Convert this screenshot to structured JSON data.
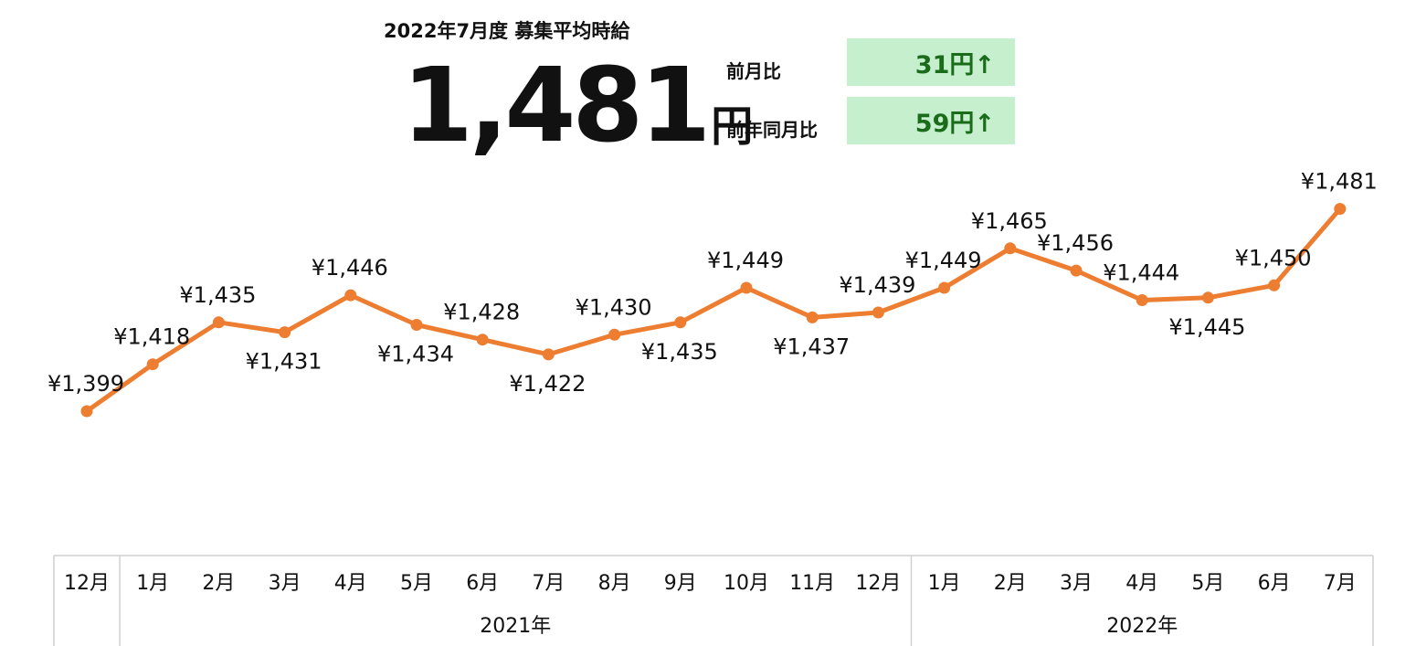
{
  "header": {
    "title": "2022年7月度 募集平均時給",
    "value": "1,481",
    "unit": "円",
    "mom_label": "前月比",
    "mom_value": "31円↑",
    "yoy_label": "前年同月比",
    "yoy_value": "59円↑"
  },
  "colors": {
    "line": "#ed7d31",
    "box": "#c6efce",
    "box_text": "#1a6b1a"
  },
  "chart_data": {
    "type": "line",
    "categories": [
      "12月",
      "1月",
      "2月",
      "3月",
      "4月",
      "5月",
      "6月",
      "7月",
      "8月",
      "9月",
      "10月",
      "11月",
      "12月",
      "1月",
      "2月",
      "3月",
      "4月",
      "5月",
      "6月",
      "7月"
    ],
    "values": [
      1399,
      1418,
      1435,
      1431,
      1446,
      1434,
      1428,
      1422,
      1430,
      1435,
      1449,
      1437,
      1439,
      1449,
      1465,
      1456,
      1444,
      1445,
      1450,
      1481
    ],
    "data_labels": [
      "¥1,399",
      "¥1,418",
      "¥1,435",
      "¥1,431",
      "¥1,446",
      "¥1,434",
      "¥1,428",
      "¥1,422",
      "¥1,430",
      "¥1,435",
      "¥1,449",
      "¥1,437",
      "¥1,439",
      "¥1,449",
      "¥1,465",
      "¥1,456",
      "¥1,444",
      "¥1,445",
      "¥1,450",
      "¥1,481"
    ],
    "year_groups": [
      {
        "label": "",
        "count": 1
      },
      {
        "label": "2021年",
        "count": 12
      },
      {
        "label": "2022年",
        "count": 7
      }
    ]
  }
}
